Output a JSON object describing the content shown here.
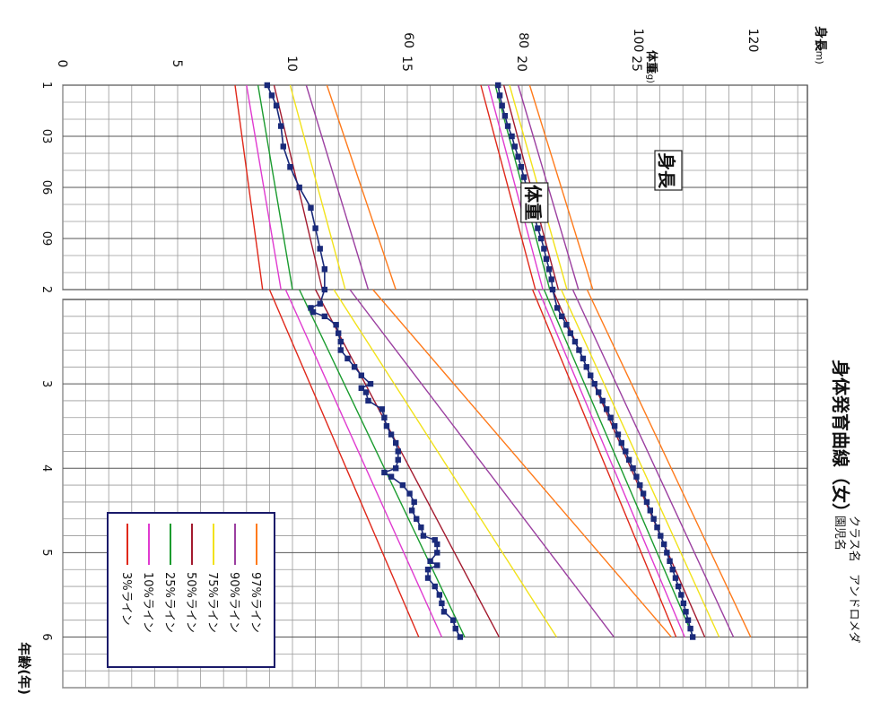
{
  "chart_data": {
    "type": "line",
    "orientation_note": "",
    "title": "身体発育曲線（女）",
    "class_label": "クラス名",
    "class_value": "アンドロメダ",
    "child_label": "園児名",
    "child_value": "",
    "xlabel": "年齢(年)",
    "x_ticks": [
      "1",
      "03",
      "06",
      "09",
      "2",
      "3",
      "4",
      "5",
      "6"
    ],
    "height_axis": {
      "label": "身長",
      "unit": "(cm)",
      "ticks": [
        {
          "value": 60,
          "label": "60"
        },
        {
          "value": 80,
          "label": "80"
        },
        {
          "value": 100,
          "label": "100"
        },
        {
          "value": 120,
          "label": "120"
        }
      ]
    },
    "weight_axis": {
      "label": "体重",
      "unit": "(kg)",
      "ticks": [
        {
          "value": 0,
          "label": "0"
        },
        {
          "value": 5,
          "label": "5"
        },
        {
          "value": 10,
          "label": "10"
        },
        {
          "value": 15,
          "label": "15"
        },
        {
          "value": 20,
          "label": "20"
        },
        {
          "value": 25,
          "label": "25"
        }
      ]
    },
    "annotations": {
      "height": "身長",
      "weight": "体重"
    },
    "legend": [
      {
        "label": "97%ライン",
        "color": "#ff7a1a"
      },
      {
        "label": "90%ライン",
        "color": "#9b3fa0"
      },
      {
        "label": "75%ライン",
        "color": "#f2e21a"
      },
      {
        "label": "50%ライン",
        "color": "#a31a2e"
      },
      {
        "label": "25%ライン",
        "color": "#1a9b2e"
      },
      {
        "label": "10%ライン",
        "color": "#e03ad0"
      },
      {
        "label": "3%ライン",
        "color": "#e0281a"
      }
    ],
    "height_percentiles": {
      "segments": [
        {
          "x": [
            1.0,
            2.0
          ],
          "p97": [
            81.0,
            92.0
          ],
          "p90": [
            79.0,
            89.5
          ],
          "p75": [
            77.5,
            87.5
          ],
          "p50": [
            76.5,
            86.0
          ],
          "p25": [
            75.0,
            84.5
          ],
          "p10": [
            73.8,
            83.3
          ],
          "p3": [
            72.5,
            82.0
          ]
        },
        {
          "x": [
            2.0,
            6.0
          ],
          "p97": [
            91.0,
            119.5
          ],
          "p90": [
            88.5,
            116.5
          ],
          "p75": [
            86.5,
            114.0
          ],
          "p50": [
            85.0,
            111.5
          ],
          "p25": [
            83.5,
            109.5
          ],
          "p10": [
            82.5,
            108.0
          ],
          "p3": [
            81.5,
            106.5
          ]
        }
      ]
    },
    "weight_percentiles": {
      "segments": [
        {
          "x": [
            1.0,
            2.0
          ],
          "p97": [
            11.5,
            14.5
          ],
          "p90": [
            10.6,
            13.3
          ],
          "p75": [
            9.9,
            12.3
          ],
          "p50": [
            9.2,
            11.3
          ],
          "p25": [
            8.5,
            10.0
          ],
          "p10": [
            8.0,
            9.5
          ],
          "p3": [
            7.5,
            8.7
          ]
        },
        {
          "x": [
            2.0,
            6.0
          ],
          "p97": [
            13.5,
            26.5
          ],
          "p90": [
            12.5,
            24.0
          ],
          "p75": [
            11.8,
            21.5
          ],
          "p50": [
            11.0,
            19.0
          ],
          "p25": [
            10.3,
            17.5
          ],
          "p10": [
            9.7,
            16.5
          ],
          "p3": [
            9.0,
            15.5
          ]
        }
      ]
    },
    "height_series": {
      "name": "身長",
      "color": "#1a2a7a",
      "x": [
        1.0,
        1.05,
        1.1,
        1.15,
        1.2,
        1.25,
        1.3,
        1.35,
        1.4,
        1.45,
        1.5,
        1.55,
        1.6,
        1.65,
        1.7,
        1.75,
        1.8,
        1.85,
        1.9,
        1.95,
        2.0,
        2.1,
        2.2,
        2.3,
        2.4,
        2.5,
        2.6,
        2.7,
        2.8,
        2.9,
        3.0,
        3.1,
        3.2,
        3.3,
        3.4,
        3.5,
        3.6,
        3.7,
        3.8,
        3.9,
        4.0,
        4.1,
        4.2,
        4.3,
        4.4,
        4.5,
        4.6,
        4.7,
        4.8,
        4.9,
        5.0,
        5.1,
        5.2,
        5.3,
        5.4,
        5.5,
        5.6,
        5.7,
        5.8,
        5.9,
        6.0
      ],
      "y": [
        75.5,
        75.8,
        76.2,
        76.7,
        77.2,
        77.9,
        78.4,
        79.0,
        79.5,
        80.0,
        80.5,
        81.0,
        81.5,
        81.9,
        82.4,
        83.0,
        83.5,
        83.9,
        84.4,
        84.8,
        85.0,
        85.8,
        86.6,
        87.4,
        88.1,
        88.9,
        89.6,
        90.3,
        90.9,
        91.6,
        92.3,
        93.0,
        93.7,
        94.4,
        95.1,
        95.8,
        96.4,
        97.0,
        97.7,
        98.3,
        99.0,
        99.6,
        100.2,
        100.8,
        101.4,
        102.0,
        102.6,
        103.2,
        103.8,
        104.4,
        104.9,
        105.4,
        105.9,
        106.4,
        106.9,
        107.4,
        107.8,
        108.2,
        108.6,
        109.0,
        109.4
      ]
    },
    "weight_series": {
      "name": "体重",
      "color": "#1a2a7a",
      "x": [
        1.0,
        1.05,
        1.1,
        1.2,
        1.3,
        1.4,
        1.5,
        1.6,
        1.7,
        1.8,
        1.9,
        2.0,
        2.05,
        2.1,
        2.15,
        2.2,
        2.3,
        2.4,
        2.5,
        2.6,
        2.7,
        2.8,
        2.9,
        3.0,
        3.05,
        3.1,
        3.2,
        3.3,
        3.4,
        3.5,
        3.6,
        3.7,
        3.8,
        3.9,
        4.0,
        4.05,
        4.1,
        4.2,
        4.3,
        4.4,
        4.5,
        4.6,
        4.7,
        4.8,
        4.85,
        4.9,
        5.0,
        5.1,
        5.15,
        5.2,
        5.3,
        5.4,
        5.5,
        5.6,
        5.7,
        5.8,
        5.9,
        6.0
      ],
      "y": [
        8.9,
        9.1,
        9.3,
        9.5,
        9.6,
        9.9,
        10.3,
        10.8,
        11.0,
        11.2,
        11.4,
        11.4,
        11.2,
        10.8,
        10.9,
        11.4,
        11.9,
        12.0,
        12.1,
        12.1,
        12.4,
        12.7,
        13.0,
        13.4,
        13.0,
        13.2,
        13.3,
        13.9,
        14.0,
        14.1,
        14.3,
        14.5,
        14.6,
        14.6,
        14.5,
        14.0,
        14.3,
        14.8,
        15.1,
        15.3,
        15.2,
        15.4,
        15.6,
        15.7,
        16.2,
        16.3,
        16.3,
        16.0,
        16.3,
        15.9,
        15.9,
        16.2,
        16.4,
        16.5,
        16.6,
        17.0,
        17.1,
        17.3
      ]
    }
  }
}
